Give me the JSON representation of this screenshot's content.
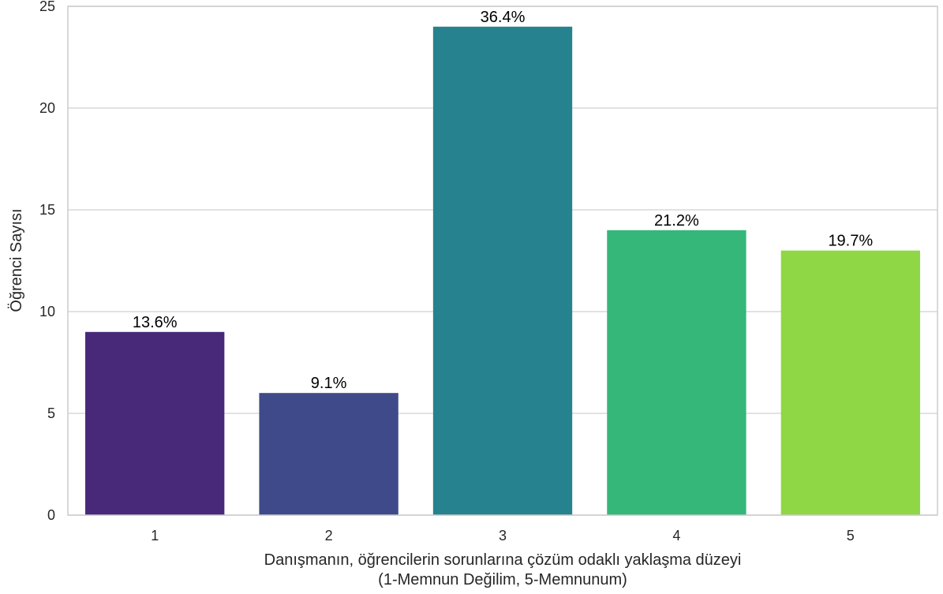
{
  "chart_data": {
    "type": "bar",
    "categories": [
      "1",
      "2",
      "3",
      "4",
      "5"
    ],
    "values": [
      9,
      6,
      24,
      14,
      13
    ],
    "data_labels": [
      "13.6%",
      "9.1%",
      "36.4%",
      "21.2%",
      "19.7%"
    ],
    "colors": [
      "#482878",
      "#3e4a89",
      "#26828e",
      "#35b779",
      "#8fd744"
    ],
    "title": "",
    "xlabel": [
      "Danışmanın, öğrencilerin sorunlarına çözüm odaklı yaklaşma düzeyi",
      "(1-Memnun Değilim, 5-Memnunum)"
    ],
    "ylabel": "Öğrenci Sayısı",
    "ylim": [
      0,
      25
    ],
    "yticks": [
      0,
      5,
      10,
      15,
      20,
      25
    ],
    "grid": true
  }
}
